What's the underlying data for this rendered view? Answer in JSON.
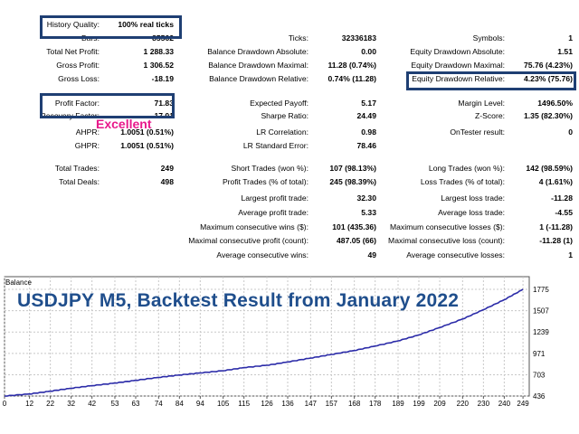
{
  "stats": {
    "col1": [
      {
        "label": "History Quality:",
        "value": "100% real ticks"
      },
      {
        "label": "Bars:",
        "value": "85562"
      },
      {
        "label": "Total Net Profit:",
        "value": "1 288.33"
      },
      {
        "label": "Gross Profit:",
        "value": "1 306.52"
      },
      {
        "label": "Gross Loss:",
        "value": "-18.19"
      },
      {
        "label": "Profit Factor:",
        "value": "71.83"
      },
      {
        "label": "Recovery Factor:",
        "value": "17.01"
      },
      {
        "label": "AHPR:",
        "value": "1.0051 (0.51%)"
      },
      {
        "label": "GHPR:",
        "value": "1.0051 (0.51%)"
      },
      {
        "label": "Total Trades:",
        "value": "249"
      },
      {
        "label": "Total Deals:",
        "value": "498"
      }
    ],
    "col2": [
      {
        "label": "Ticks:",
        "value": "32336183"
      },
      {
        "label": "Balance Drawdown Absolute:",
        "value": "0.00"
      },
      {
        "label": "Balance Drawdown Maximal:",
        "value": "11.28 (0.74%)"
      },
      {
        "label": "Balance Drawdown Relative:",
        "value": "0.74% (11.28)"
      },
      {
        "label": "Expected Payoff:",
        "value": "5.17"
      },
      {
        "label": "Sharpe Ratio:",
        "value": "24.49"
      },
      {
        "label": "LR Correlation:",
        "value": "0.98"
      },
      {
        "label": "LR Standard Error:",
        "value": "78.46"
      },
      {
        "label": "Short Trades (won %):",
        "value": "107 (98.13%)"
      },
      {
        "label": "Profit Trades (% of total):",
        "value": "245 (98.39%)"
      },
      {
        "label": "Largest profit trade:",
        "value": "32.30"
      },
      {
        "label": "Average profit trade:",
        "value": "5.33"
      },
      {
        "label": "Maximum consecutive wins ($):",
        "value": "101 (435.36)"
      },
      {
        "label": "Maximal consecutive profit (count):",
        "value": "487.05 (66)"
      },
      {
        "label": "Average consecutive wins:",
        "value": "49"
      }
    ],
    "col3": [
      {
        "label": "Symbols:",
        "value": "1"
      },
      {
        "label": "Equity Drawdown Absolute:",
        "value": "1.51"
      },
      {
        "label": "Equity Drawdown Maximal:",
        "value": "75.76 (4.23%)"
      },
      {
        "label": "Equity Drawdown Relative:",
        "value": "4.23% (75.76)"
      },
      {
        "label": "Margin Level:",
        "value": "1496.50%"
      },
      {
        "label": "Z-Score:",
        "value": "1.35 (82.30%)"
      },
      {
        "label": "OnTester result:",
        "value": "0"
      },
      {
        "label": "Long Trades (won %):",
        "value": "142 (98.59%)"
      },
      {
        "label": "Loss Trades (% of total):",
        "value": "4 (1.61%)"
      },
      {
        "label": "Largest loss trade:",
        "value": "-11.28"
      },
      {
        "label": "Average loss trade:",
        "value": "-4.55"
      },
      {
        "label": "Maximum consecutive losses ($):",
        "value": "1 (-11.28)"
      },
      {
        "label": "Maximal consecutive loss (count):",
        "value": "-11.28 (1)"
      },
      {
        "label": "Average consecutive losses:",
        "value": "1"
      }
    ]
  },
  "annotation": {
    "excellent": "Excellent"
  },
  "overlay_title": "USDJPY M5, Backtest Result from January 2022",
  "chart_data": {
    "type": "line",
    "title": "Balance",
    "series": [
      {
        "color": "#2b2ba8",
        "x": [
          0,
          12,
          22,
          32,
          42,
          53,
          63,
          74,
          84,
          94,
          105,
          115,
          126,
          136,
          147,
          157,
          168,
          178,
          189,
          199,
          209,
          220,
          230,
          240,
          249
        ],
        "values": [
          436,
          462,
          497,
          534,
          566,
          599,
          633,
          670,
          700,
          726,
          754,
          793,
          822,
          864,
          912,
          958,
          1007,
          1064,
          1128,
          1203,
          1296,
          1403,
          1520,
          1645,
          1775
        ]
      }
    ],
    "x_ticks": [
      "0",
      "12",
      "22",
      "32",
      "42",
      "53",
      "63",
      "74",
      "84",
      "94",
      "105",
      "115",
      "126",
      "136",
      "147",
      "157",
      "168",
      "178",
      "189",
      "199",
      "209",
      "220",
      "230",
      "240",
      "249"
    ],
    "y_ticks": [
      "1775",
      "1507",
      "1239",
      "971",
      "703",
      "436"
    ],
    "xlim": [
      0,
      252
    ],
    "ylim": [
      436,
      1775
    ],
    "grid": true
  }
}
